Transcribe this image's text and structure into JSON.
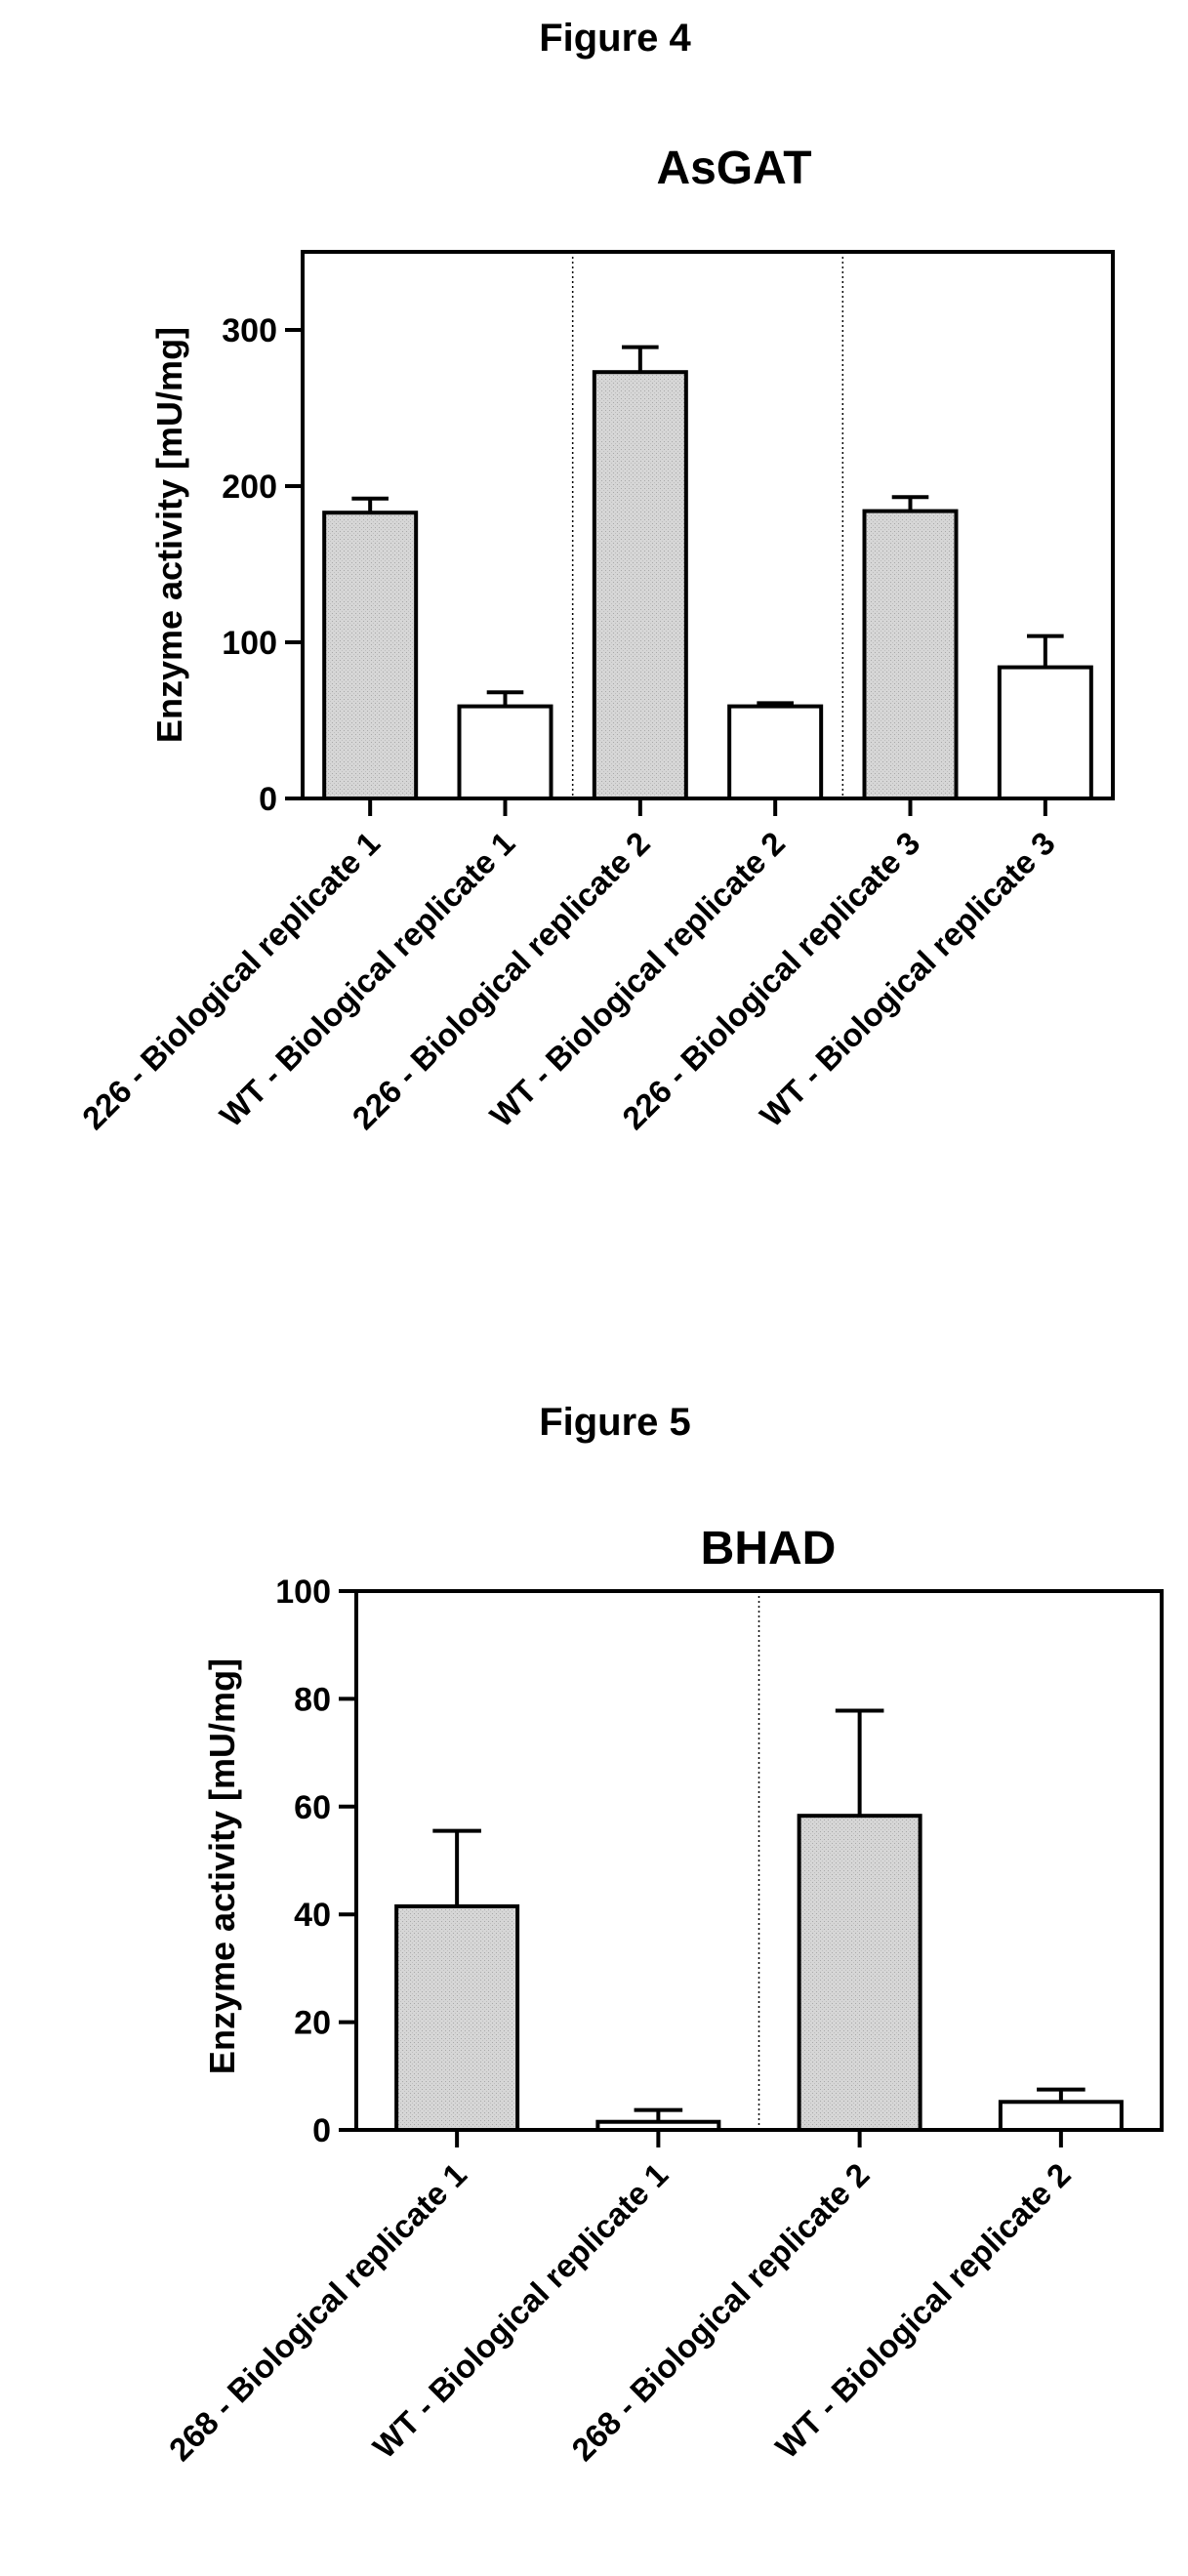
{
  "figures": [
    {
      "label": "Figure 4",
      "chart": {
        "type": "bar",
        "title": "AsGAT",
        "ylabel": "Enzyme activity [mU/mg]",
        "xlabel": "",
        "ylim": [
          0,
          350
        ],
        "yticks": [
          0,
          100,
          200,
          300
        ],
        "categories": [
          "226 - Biological replicate 1",
          "WT - Biological replicate 1",
          "226 - Biological replicate 2",
          "WT - Biological replicate 2",
          "226 - Biological replicate 3",
          "WT - Biological replicate 3"
        ],
        "values": [
          183,
          59,
          273,
          59,
          184,
          84
        ],
        "errors": [
          9,
          9,
          16,
          2,
          9,
          20
        ],
        "bar_fill": [
          "gray",
          "white",
          "gray",
          "white",
          "gray",
          "white"
        ],
        "group_separators_after": [
          2,
          4
        ],
        "grid": false
      }
    },
    {
      "label": "Figure 5",
      "chart": {
        "type": "bar",
        "title": "BHAD",
        "ylabel": "Enzyme activity [mU/mg]",
        "xlabel": "",
        "ylim": [
          0,
          100
        ],
        "yticks": [
          0,
          20,
          40,
          60,
          80,
          100
        ],
        "categories": [
          "268 - Biological replicate 1",
          "WT - Biological replicate 1",
          "268 - Biological replicate 2",
          "WT - Biological replicate 2"
        ],
        "values": [
          41.5,
          1.5,
          58.3,
          5.2
        ],
        "errors": [
          14,
          2.2,
          19.5,
          2.3
        ],
        "bar_fill": [
          "gray",
          "white",
          "gray",
          "white"
        ],
        "group_separators_after": [
          2
        ],
        "grid": false
      }
    }
  ],
  "colors": {
    "gray": "#d4d4d4",
    "white": "#ffffff",
    "stroke": "#000000"
  }
}
